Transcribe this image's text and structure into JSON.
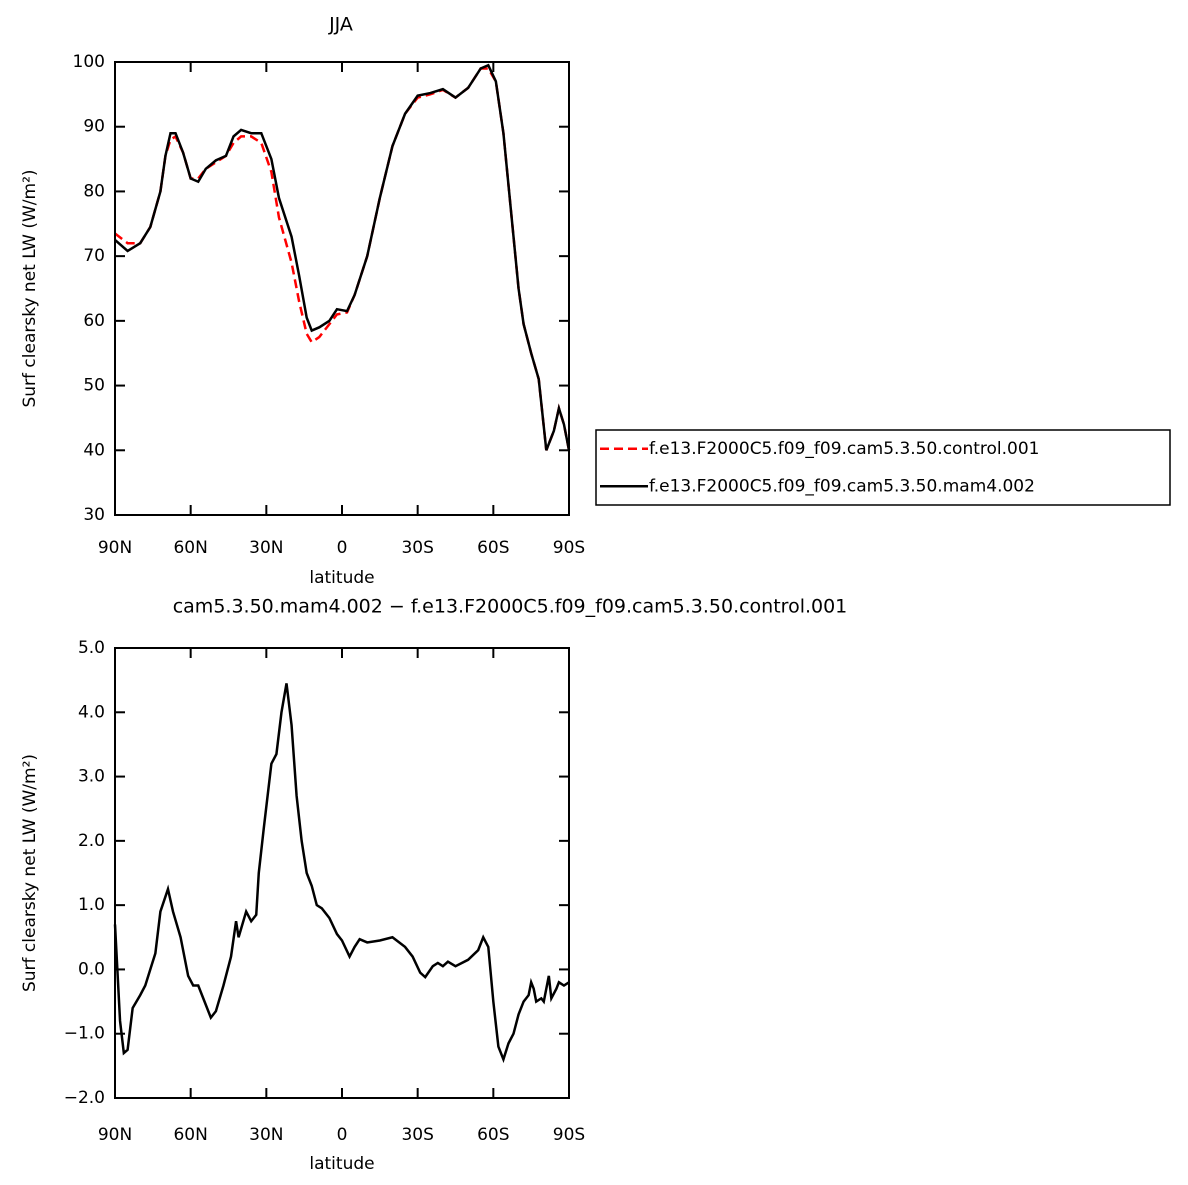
{
  "chart_data": [
    {
      "type": "line",
      "title": "JJA",
      "xlabel": "latitude",
      "ylabel": "Surf clearsky net LW (W/m²)",
      "xlim": [
        90,
        -90
      ],
      "ylim": [
        30,
        100
      ],
      "xticks": [
        {
          "value": 90,
          "label": "90N"
        },
        {
          "value": 60,
          "label": "60N"
        },
        {
          "value": 30,
          "label": "30N"
        },
        0,
        {
          "value": -30,
          "label": "30S"
        },
        {
          "value": -60,
          "label": "60S"
        },
        {
          "value": -90,
          "label": "90S"
        }
      ],
      "yticks": [
        30,
        40,
        50,
        60,
        70,
        80,
        90,
        100
      ],
      "legend": "right",
      "x": [
        90,
        85,
        80,
        76,
        72,
        70,
        68,
        66,
        63,
        60,
        57,
        54,
        50,
        46,
        43,
        40,
        36,
        32,
        28,
        25,
        20,
        17,
        14,
        12,
        9,
        5,
        2,
        -2,
        -5,
        -10,
        -15,
        -20,
        -25,
        -30,
        -35,
        -40,
        -45,
        -50,
        -55,
        -58,
        -61,
        -64,
        -67,
        -70,
        -72,
        -75,
        -78,
        -81,
        -84,
        -86,
        -88,
        -90
      ],
      "series": [
        {
          "name": "f.e13.F2000C5.f09_f09.cam5.3.50.control.001",
          "color": "#ff0000",
          "line_style": "dashed",
          "values": [
            73.5,
            72,
            72,
            74.5,
            80,
            85.5,
            88,
            88.5,
            86,
            82,
            82,
            83.5,
            84.5,
            85.5,
            87.5,
            88.5,
            88.5,
            87.5,
            83,
            76,
            69,
            63,
            58,
            56.7,
            57.5,
            59.5,
            61,
            61.3,
            64,
            70,
            79,
            87,
            92,
            94.5,
            95,
            95.7,
            94.5,
            96,
            99,
            99,
            97,
            89,
            77,
            65,
            59.5,
            55,
            51,
            40,
            43,
            46.5,
            44,
            40
          ]
        },
        {
          "name": "f.e13.F2000C5.f09_f09.cam5.3.50.mam4.002",
          "color": "#000000",
          "line_style": "solid",
          "values": [
            72.5,
            70.8,
            72,
            74.5,
            80,
            85.5,
            89,
            89,
            86,
            82,
            81.5,
            83.5,
            84.8,
            85.5,
            88.5,
            89.5,
            89,
            89,
            85,
            79,
            73,
            67,
            60.5,
            58.5,
            59,
            60,
            61.8,
            61.5,
            64,
            70,
            79,
            87,
            92,
            94.8,
            95.2,
            95.8,
            94.5,
            96,
            99,
            99.5,
            97,
            89,
            77,
            65,
            59.5,
            55,
            51,
            40,
            43,
            46.5,
            44,
            40
          ]
        }
      ]
    },
    {
      "type": "line",
      "title": "cam5.3.50.mam4.002 − f.e13.F2000C5.f09_f09.cam5.3.50.control.001",
      "xlabel": "latitude",
      "ylabel": "Surf clearsky net LW (W/m²)",
      "xlim": [
        90,
        -90
      ],
      "ylim": [
        -2,
        5
      ],
      "xticks": [
        {
          "value": 90,
          "label": "90N"
        },
        {
          "value": 60,
          "label": "60N"
        },
        {
          "value": 30,
          "label": "30N"
        },
        0,
        {
          "value": -30,
          "label": "30S"
        },
        {
          "value": -60,
          "label": "60S"
        },
        {
          "value": -90,
          "label": "90S"
        }
      ],
      "yticks": [
        {
          "value": -2,
          "label": "−2.0"
        },
        {
          "value": -1,
          "label": "−1.0"
        },
        {
          "value": 0,
          "label": "0.0"
        },
        {
          "value": 1,
          "label": "1.0"
        },
        {
          "value": 2,
          "label": "2.0"
        },
        {
          "value": 3,
          "label": "3.0"
        },
        {
          "value": 4,
          "label": "4.0"
        },
        {
          "value": 5,
          "label": "5.0"
        }
      ],
      "color": "#000000",
      "x": [
        90,
        88,
        86.5,
        85,
        83,
        80,
        78,
        76,
        74,
        72,
        69,
        67,
        64,
        61,
        59,
        57,
        55,
        52,
        50,
        47,
        44,
        42,
        41,
        38,
        36,
        34,
        33,
        31,
        28,
        26,
        24,
        22,
        20,
        18,
        16,
        14,
        12,
        10,
        8,
        5,
        2,
        0,
        -3,
        -5,
        -7,
        -10,
        -15,
        -20,
        -25,
        -28,
        -31,
        -33,
        -36,
        -38,
        -40,
        -42,
        -45,
        -50,
        -54,
        -56,
        -58,
        -60,
        -62,
        -64,
        -66,
        -68,
        -70,
        -72,
        -74,
        -75,
        -76,
        -77,
        -79,
        -80,
        -82,
        -83,
        -85,
        -86,
        -88,
        -90
      ],
      "values": [
        0.7,
        -0.8,
        -1.3,
        -1.25,
        -0.6,
        -0.4,
        -0.25,
        0,
        0.25,
        0.9,
        1.25,
        0.9,
        0.5,
        -0.1,
        -0.25,
        -0.25,
        -0.45,
        -0.75,
        -0.65,
        -0.25,
        0.2,
        0.75,
        0.5,
        0.9,
        0.75,
        0.85,
        1.5,
        2.2,
        3.2,
        3.35,
        4.0,
        4.45,
        3.8,
        2.7,
        2.0,
        1.5,
        1.3,
        1.0,
        0.95,
        0.8,
        0.55,
        0.45,
        0.2,
        0.35,
        0.47,
        0.42,
        0.45,
        0.5,
        0.35,
        0.2,
        -0.05,
        -0.12,
        0.05,
        0.1,
        0.05,
        0.12,
        0.05,
        0.15,
        0.3,
        0.5,
        0.35,
        -0.5,
        -1.2,
        -1.4,
        -1.15,
        -1.0,
        -0.7,
        -0.5,
        -0.4,
        -0.2,
        -0.3,
        -0.5,
        -0.45,
        -0.5,
        -0.1,
        -0.45,
        -0.3,
        -0.2,
        -0.25,
        -0.2
      ]
    }
  ]
}
